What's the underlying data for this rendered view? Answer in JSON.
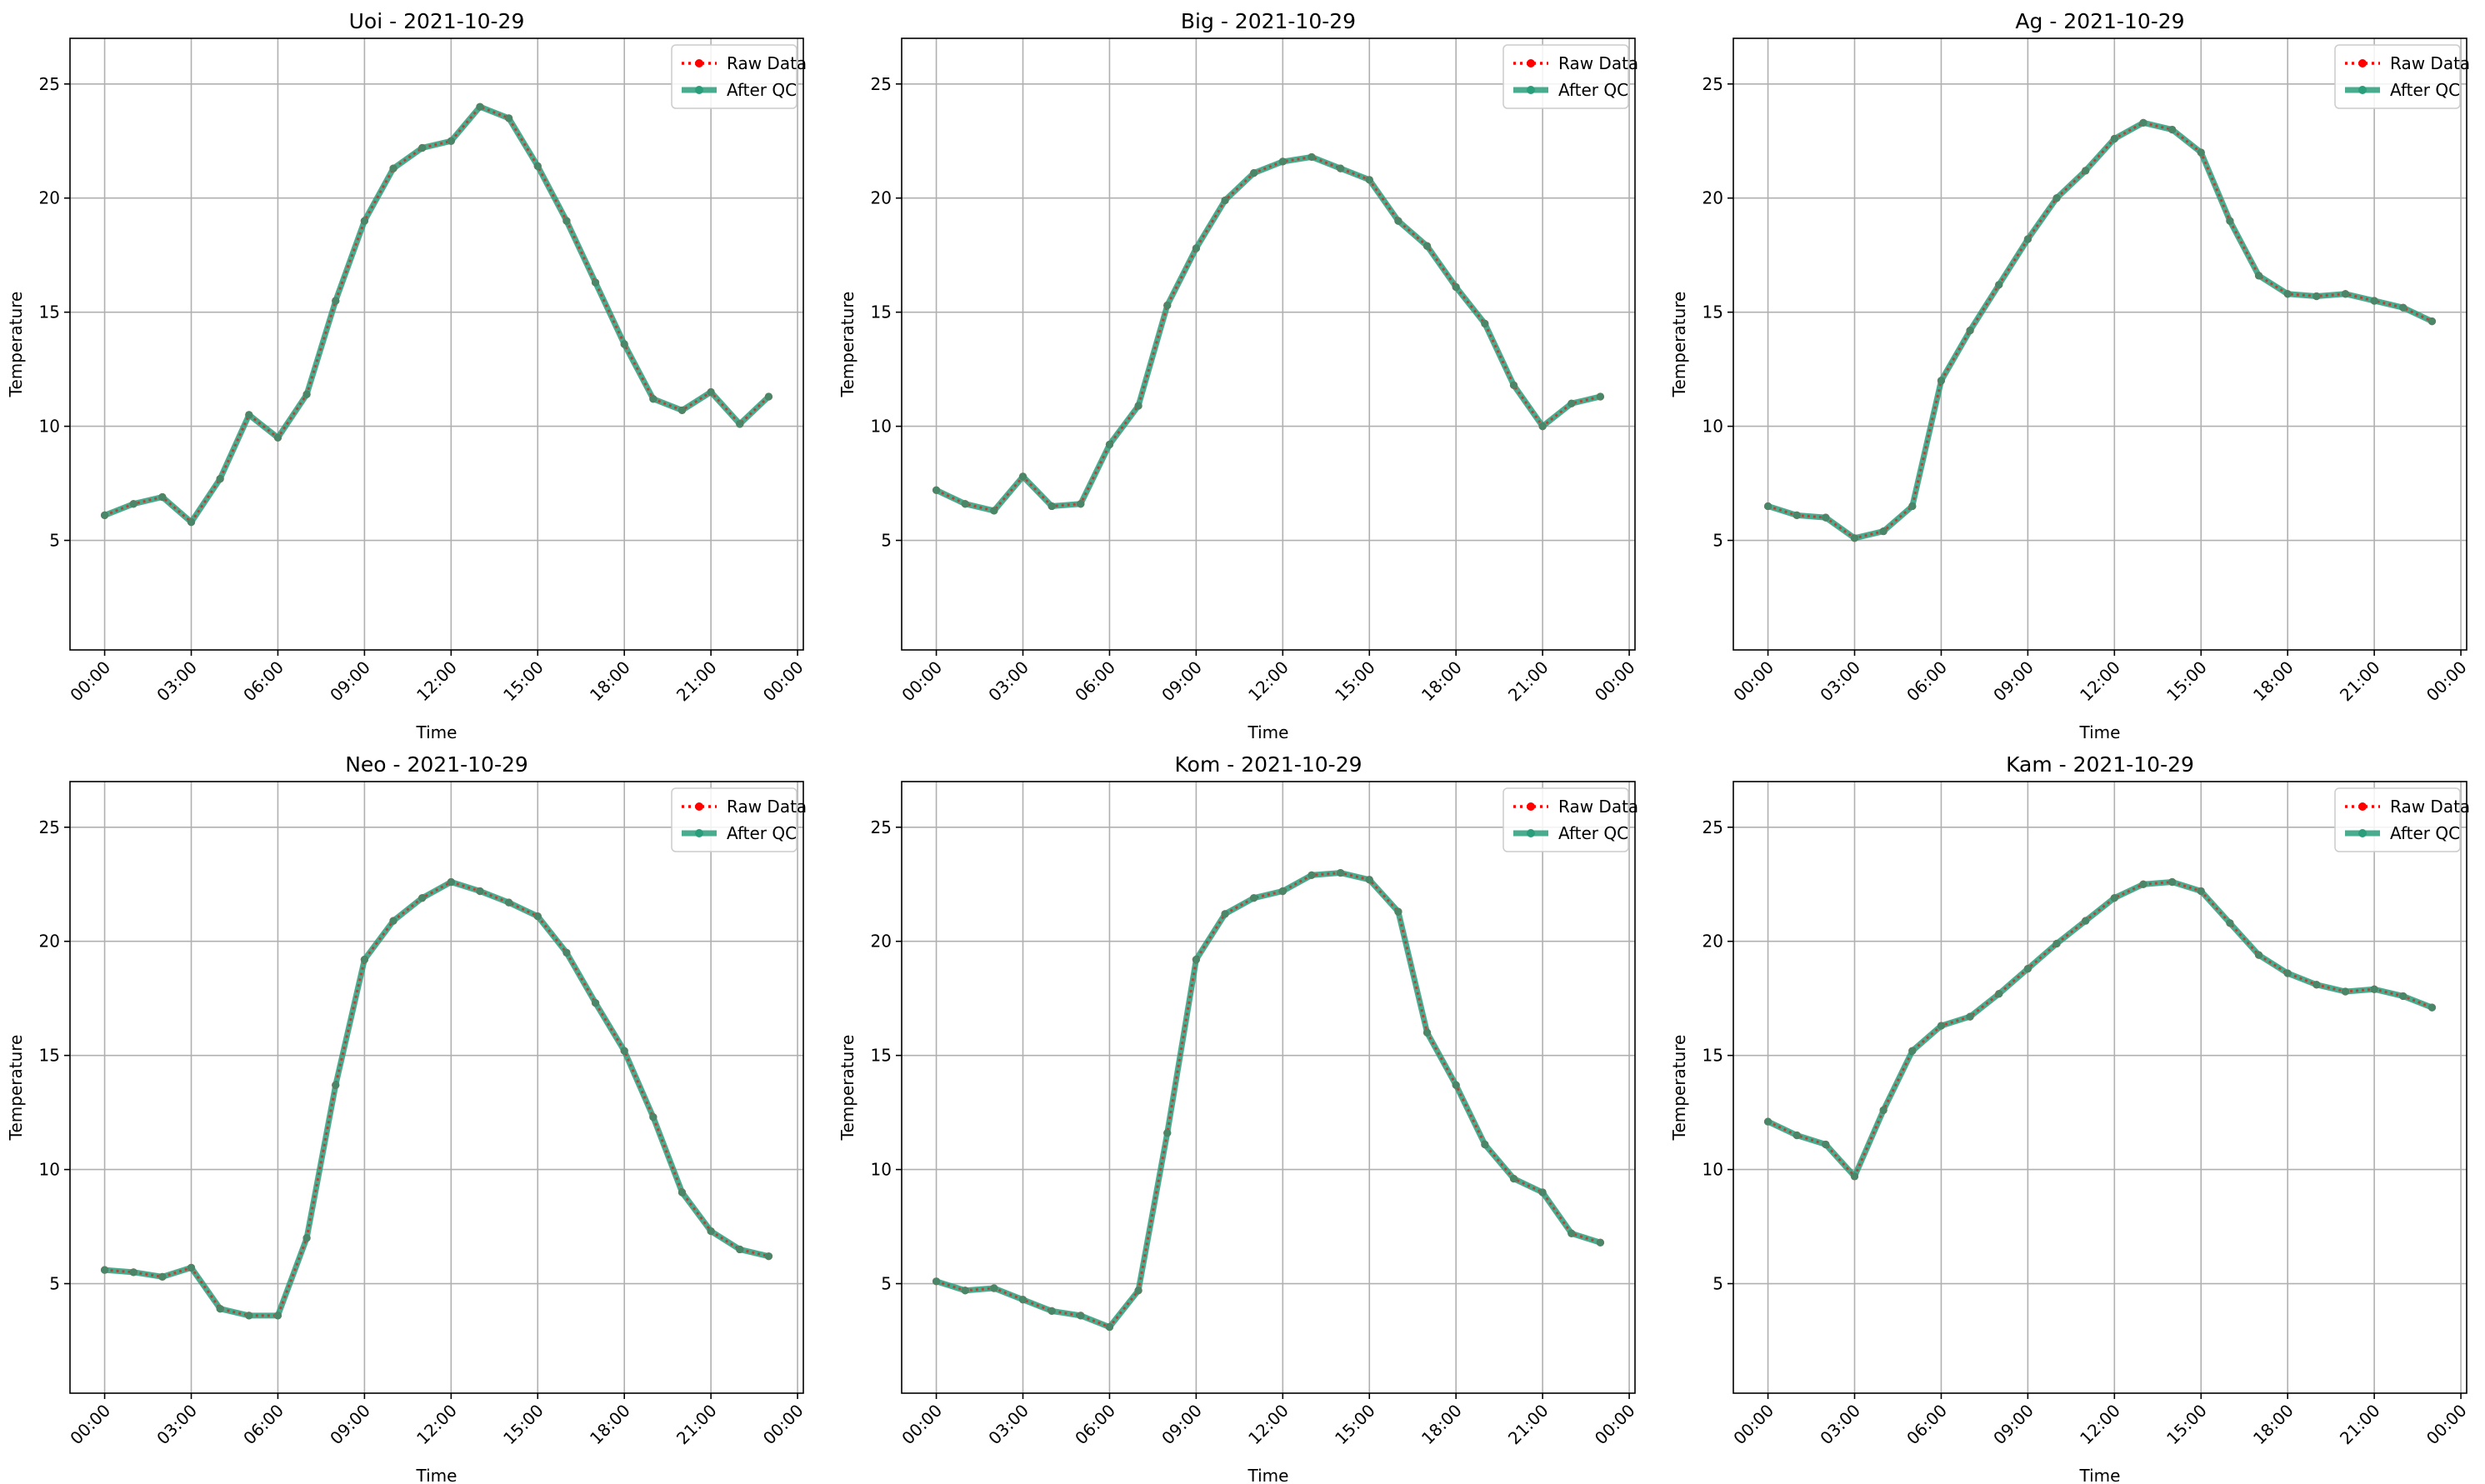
{
  "chart_data": [
    {
      "type": "line",
      "title": "Uoi - 2021-10-29",
      "xlabel": "Time",
      "ylabel": "Temperature",
      "x_ticks": [
        "00:00",
        "03:00",
        "06:00",
        "09:00",
        "12:00",
        "15:00",
        "18:00",
        "21:00",
        "00:00"
      ],
      "y_ticks": [
        5,
        10,
        15,
        20,
        25
      ],
      "ylim": [
        0.2,
        27
      ],
      "xlim_hours": [
        -1.2,
        24.2
      ],
      "x_hours": [
        0,
        1,
        2,
        3,
        4,
        5,
        6,
        7,
        8,
        9,
        10,
        11,
        12,
        13,
        14,
        15,
        16,
        17,
        18,
        19,
        20,
        21,
        22,
        23
      ],
      "grid": true,
      "legend_position": "upper right",
      "series": [
        {
          "name": "Raw Data",
          "color": "#ff0000",
          "style": "dotted",
          "values": [
            6.1,
            6.6,
            6.9,
            5.8,
            7.7,
            10.5,
            9.5,
            11.4,
            15.5,
            19.0,
            21.3,
            22.2,
            22.5,
            24.0,
            23.5,
            21.4,
            19.0,
            16.3,
            13.6,
            11.2,
            10.7,
            11.5,
            10.1,
            11.3
          ]
        },
        {
          "name": "After QC",
          "color": "#2a9d7a",
          "style": "solid",
          "values": [
            6.1,
            6.6,
            6.9,
            5.8,
            7.7,
            10.5,
            9.5,
            11.4,
            15.5,
            19.0,
            21.3,
            22.2,
            22.5,
            24.0,
            23.5,
            21.4,
            19.0,
            16.3,
            13.6,
            11.2,
            10.7,
            11.5,
            10.1,
            11.3
          ]
        }
      ]
    },
    {
      "type": "line",
      "title": "Big - 2021-10-29",
      "xlabel": "Time",
      "ylabel": "Temperature",
      "x_ticks": [
        "00:00",
        "03:00",
        "06:00",
        "09:00",
        "12:00",
        "15:00",
        "18:00",
        "21:00",
        "00:00"
      ],
      "y_ticks": [
        5,
        10,
        15,
        20,
        25
      ],
      "ylim": [
        0.2,
        27
      ],
      "xlim_hours": [
        -1.2,
        24.2
      ],
      "x_hours": [
        0,
        1,
        2,
        3,
        4,
        5,
        6,
        7,
        8,
        9,
        10,
        11,
        12,
        13,
        14,
        15,
        16,
        17,
        18,
        19,
        20,
        21,
        22,
        23
      ],
      "grid": true,
      "legend_position": "upper right",
      "series": [
        {
          "name": "Raw Data",
          "color": "#ff0000",
          "style": "dotted",
          "values": [
            7.2,
            6.6,
            6.3,
            7.8,
            6.5,
            6.6,
            9.2,
            10.9,
            15.3,
            17.8,
            19.9,
            21.1,
            21.6,
            21.8,
            21.3,
            20.8,
            19.0,
            17.9,
            16.1,
            14.5,
            11.8,
            10.0,
            11.0,
            11.3
          ]
        },
        {
          "name": "After QC",
          "color": "#2a9d7a",
          "style": "solid",
          "values": [
            7.2,
            6.6,
            6.3,
            7.8,
            6.5,
            6.6,
            9.2,
            10.9,
            15.3,
            17.8,
            19.9,
            21.1,
            21.6,
            21.8,
            21.3,
            20.8,
            19.0,
            17.9,
            16.1,
            14.5,
            11.8,
            10.0,
            11.0,
            11.3
          ]
        }
      ]
    },
    {
      "type": "line",
      "title": "Ag - 2021-10-29",
      "xlabel": "Time",
      "ylabel": "Temperature",
      "x_ticks": [
        "00:00",
        "03:00",
        "06:00",
        "09:00",
        "12:00",
        "15:00",
        "18:00",
        "21:00",
        "00:00"
      ],
      "y_ticks": [
        5,
        10,
        15,
        20,
        25
      ],
      "ylim": [
        0.2,
        27
      ],
      "xlim_hours": [
        -1.2,
        24.2
      ],
      "x_hours": [
        0,
        1,
        2,
        3,
        4,
        5,
        6,
        7,
        8,
        9,
        10,
        11,
        12,
        13,
        14,
        15,
        16,
        17,
        18,
        19,
        20,
        21,
        22,
        23
      ],
      "grid": true,
      "legend_position": "upper right",
      "series": [
        {
          "name": "Raw Data",
          "color": "#ff0000",
          "style": "dotted",
          "values": [
            6.5,
            6.1,
            6.0,
            5.1,
            5.4,
            6.5,
            12.0,
            14.2,
            16.2,
            18.2,
            20.0,
            21.2,
            22.6,
            23.3,
            23.0,
            22.0,
            19.0,
            16.6,
            15.8,
            15.7,
            15.8,
            15.5,
            15.2,
            14.6
          ]
        },
        {
          "name": "After QC",
          "color": "#2a9d7a",
          "style": "solid",
          "values": [
            6.5,
            6.1,
            6.0,
            5.1,
            5.4,
            6.5,
            12.0,
            14.2,
            16.2,
            18.2,
            20.0,
            21.2,
            22.6,
            23.3,
            23.0,
            22.0,
            19.0,
            16.6,
            15.8,
            15.7,
            15.8,
            15.5,
            15.2,
            14.6
          ]
        }
      ]
    },
    {
      "type": "line",
      "title": "Neo - 2021-10-29",
      "xlabel": "Time",
      "ylabel": "Temperature",
      "x_ticks": [
        "00:00",
        "03:00",
        "06:00",
        "09:00",
        "12:00",
        "15:00",
        "18:00",
        "21:00",
        "00:00"
      ],
      "y_ticks": [
        5,
        10,
        15,
        20,
        25
      ],
      "ylim": [
        0.2,
        27
      ],
      "xlim_hours": [
        -1.2,
        24.2
      ],
      "x_hours": [
        0,
        1,
        2,
        3,
        4,
        5,
        6,
        7,
        8,
        9,
        10,
        11,
        12,
        13,
        14,
        15,
        16,
        17,
        18,
        19,
        20,
        21,
        22,
        23
      ],
      "grid": true,
      "legend_position": "upper right",
      "series": [
        {
          "name": "Raw Data",
          "color": "#ff0000",
          "style": "dotted",
          "values": [
            5.6,
            5.5,
            5.3,
            5.7,
            3.9,
            3.6,
            3.6,
            7.0,
            13.7,
            19.2,
            20.9,
            21.9,
            22.6,
            22.2,
            21.7,
            21.1,
            19.5,
            17.3,
            15.2,
            12.3,
            9.0,
            7.3,
            6.5,
            6.2
          ]
        },
        {
          "name": "After QC",
          "color": "#2a9d7a",
          "style": "solid",
          "values": [
            5.6,
            5.5,
            5.3,
            5.7,
            3.9,
            3.6,
            3.6,
            7.0,
            13.7,
            19.2,
            20.9,
            21.9,
            22.6,
            22.2,
            21.7,
            21.1,
            19.5,
            17.3,
            15.2,
            12.3,
            9.0,
            7.3,
            6.5,
            6.2
          ]
        }
      ]
    },
    {
      "type": "line",
      "title": "Kom - 2021-10-29",
      "xlabel": "Time",
      "ylabel": "Temperature",
      "x_ticks": [
        "00:00",
        "03:00",
        "06:00",
        "09:00",
        "12:00",
        "15:00",
        "18:00",
        "21:00",
        "00:00"
      ],
      "y_ticks": [
        5,
        10,
        15,
        20,
        25
      ],
      "ylim": [
        0.2,
        27
      ],
      "xlim_hours": [
        -1.2,
        24.2
      ],
      "x_hours": [
        0,
        1,
        2,
        3,
        4,
        5,
        6,
        7,
        8,
        9,
        10,
        11,
        12,
        13,
        14,
        15,
        16,
        17,
        18,
        19,
        20,
        21,
        22,
        23
      ],
      "grid": true,
      "legend_position": "upper right",
      "series": [
        {
          "name": "Raw Data",
          "color": "#ff0000",
          "style": "dotted",
          "values": [
            5.1,
            4.7,
            4.8,
            4.3,
            3.8,
            3.6,
            3.1,
            4.7,
            11.6,
            19.2,
            21.2,
            21.9,
            22.2,
            22.9,
            23.0,
            22.7,
            21.3,
            16.0,
            13.7,
            11.1,
            9.6,
            9.0,
            7.2,
            6.8
          ]
        },
        {
          "name": "After QC",
          "color": "#2a9d7a",
          "style": "solid",
          "values": [
            5.1,
            4.7,
            4.8,
            4.3,
            3.8,
            3.6,
            3.1,
            4.7,
            11.6,
            19.2,
            21.2,
            21.9,
            22.2,
            22.9,
            23.0,
            22.7,
            21.3,
            16.0,
            13.7,
            11.1,
            9.6,
            9.0,
            7.2,
            6.8
          ]
        }
      ]
    },
    {
      "type": "line",
      "title": "Kam - 2021-10-29",
      "xlabel": "Time",
      "ylabel": "Temperature",
      "x_ticks": [
        "00:00",
        "03:00",
        "06:00",
        "09:00",
        "12:00",
        "15:00",
        "18:00",
        "21:00",
        "00:00"
      ],
      "y_ticks": [
        5,
        10,
        15,
        20,
        25
      ],
      "ylim": [
        0.2,
        27
      ],
      "xlim_hours": [
        -1.2,
        24.2
      ],
      "x_hours": [
        0,
        1,
        2,
        3,
        4,
        5,
        6,
        7,
        8,
        9,
        10,
        11,
        12,
        13,
        14,
        15,
        16,
        17,
        18,
        19,
        20,
        21,
        22,
        23
      ],
      "grid": true,
      "legend_position": "upper right",
      "series": [
        {
          "name": "Raw Data",
          "color": "#ff0000",
          "style": "dotted",
          "values": [
            12.1,
            11.5,
            11.1,
            9.7,
            12.6,
            15.2,
            16.3,
            16.7,
            17.7,
            18.8,
            19.9,
            20.9,
            21.9,
            22.5,
            22.6,
            22.2,
            20.8,
            19.4,
            18.6,
            18.1,
            17.8,
            17.9,
            17.6,
            17.1
          ]
        },
        {
          "name": "After QC",
          "color": "#2a9d7a",
          "style": "solid",
          "values": [
            12.1,
            11.5,
            11.1,
            9.7,
            12.6,
            15.2,
            16.3,
            16.7,
            17.7,
            18.8,
            19.9,
            20.9,
            21.9,
            22.5,
            22.6,
            22.2,
            20.8,
            19.4,
            18.6,
            18.1,
            17.8,
            17.9,
            17.6,
            17.1
          ]
        }
      ]
    }
  ]
}
